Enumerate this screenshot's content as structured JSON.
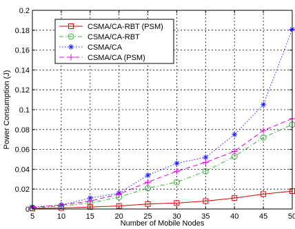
{
  "chart_data": {
    "type": "line",
    "xlabel": "Number of Mobile Nodes",
    "ylabel": "Power Consumption (J)",
    "xlim": [
      5,
      50
    ],
    "ylim": [
      0,
      0.2
    ],
    "xticks": [
      "5",
      "10",
      "15",
      "20",
      "25",
      "30",
      "35",
      "40",
      "45",
      "50"
    ],
    "yticks": [
      "0",
      "0.02",
      "0.04",
      "0.06",
      "0.08",
      "0.1",
      "0.12",
      "0.14",
      "0.16",
      "0.18",
      "0.2"
    ],
    "grid": true,
    "legend_position": "top-left",
    "x": [
      5,
      10,
      15,
      20,
      25,
      30,
      35,
      40,
      45,
      50
    ],
    "series": [
      {
        "name": "CSMA/CA-RBT (PSM)",
        "color": "#dd0000",
        "line": "solid",
        "marker": "square",
        "values": [
          0.0005,
          0.001,
          0.002,
          0.003,
          0.005,
          0.006,
          0.008,
          0.011,
          0.015,
          0.018
        ]
      },
      {
        "name": "CSMA/CA-RBT",
        "color": "#33aa33",
        "line": "dashdot",
        "marker": "circle",
        "values": [
          0.001,
          0.003,
          0.006,
          0.012,
          0.021,
          0.027,
          0.038,
          0.053,
          0.072,
          0.085
        ]
      },
      {
        "name": "CSMA/CA",
        "color": "#1a1aff",
        "line": "dotted",
        "marker": "star",
        "values": [
          0.002,
          0.004,
          0.011,
          0.016,
          0.034,
          0.046,
          0.052,
          0.075,
          0.105,
          0.181
        ]
      },
      {
        "name": "CSMA/CA (PSM)",
        "color": "#dd00dd",
        "line": "dashed",
        "marker": "plus",
        "values": [
          0.0015,
          0.004,
          0.008,
          0.015,
          0.027,
          0.038,
          0.047,
          0.058,
          0.079,
          0.091
        ]
      }
    ]
  }
}
